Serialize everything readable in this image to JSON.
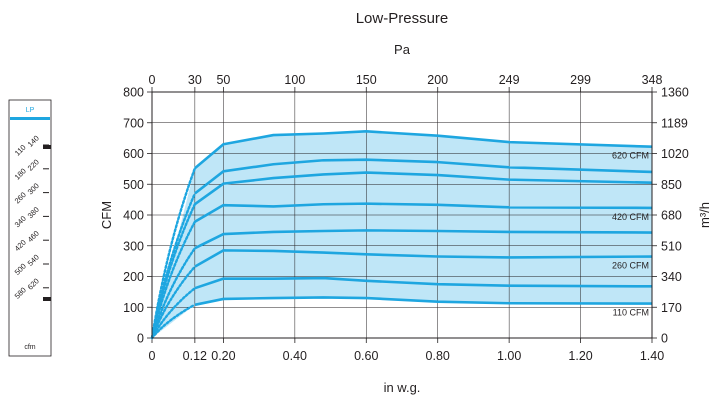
{
  "chart_data": {
    "type": "area",
    "title": "Low-Pressure",
    "xlabel": "in w.g.",
    "ylabel": "CFM",
    "top_axis_label": "Pa",
    "right_axis_label": "m³/h",
    "xlim": [
      0,
      1.4
    ],
    "ylim": [
      0,
      800
    ],
    "x_ticks": [
      "0",
      "0.12",
      "0.20",
      "0.40",
      "0.60",
      "0.80",
      "1.00",
      "1.20",
      "1.40"
    ],
    "x_tick_values": [
      0,
      0.12,
      0.2,
      0.4,
      0.6,
      0.8,
      1.0,
      1.2,
      1.4
    ],
    "y_ticks": [
      "0",
      "100",
      "200",
      "300",
      "400",
      "500",
      "600",
      "700",
      "800"
    ],
    "y_tick_values": [
      0,
      100,
      200,
      300,
      400,
      500,
      600,
      700,
      800
    ],
    "top_ticks": [
      "0",
      "30",
      "50",
      "100",
      "150",
      "200",
      "249",
      "299",
      "348"
    ],
    "right_ticks": [
      "0",
      "170",
      "340",
      "510",
      "680",
      "850",
      "1020",
      "1189",
      "1360"
    ],
    "grid": true,
    "colors": {
      "line": "#1ea6e0",
      "fill": "#bfe6f7",
      "grid": "#231f20"
    },
    "series": [
      {
        "name": "110 CFM",
        "x": [
          0.12,
          0.2,
          0.34,
          0.48,
          0.6,
          0.8,
          1.0,
          1.4
        ],
        "y": [
          108,
          127,
          130,
          132,
          130,
          118,
          113,
          112
        ]
      },
      {
        "x": [
          0.12,
          0.2,
          0.34,
          0.48,
          0.6,
          0.8,
          1.0,
          1.4
        ],
        "y": [
          162,
          193,
          193,
          195,
          186,
          175,
          170,
          168
        ]
      },
      {
        "name": "260 CFM",
        "x": [
          0.12,
          0.2,
          0.34,
          0.48,
          0.6,
          0.8,
          1.0,
          1.4
        ],
        "y": [
          232,
          285,
          283,
          278,
          272,
          265,
          262,
          265
        ]
      },
      {
        "x": [
          0.12,
          0.2,
          0.34,
          0.48,
          0.6,
          0.8,
          1.0,
          1.4
        ],
        "y": [
          292,
          338,
          345,
          348,
          350,
          348,
          345,
          343
        ]
      },
      {
        "name": "420 CFM",
        "x": [
          0.12,
          0.2,
          0.34,
          0.48,
          0.6,
          0.8,
          1.0,
          1.4
        ],
        "y": [
          378,
          432,
          428,
          435,
          437,
          433,
          425,
          423
        ]
      },
      {
        "x": [
          0.12,
          0.2,
          0.34,
          0.48,
          0.6,
          0.8,
          1.0,
          1.4
        ],
        "y": [
          435,
          502,
          520,
          532,
          538,
          530,
          515,
          505
        ]
      },
      {
        "x": [
          0.12,
          0.2,
          0.34,
          0.48,
          0.6,
          0.8,
          1.0,
          1.4
        ],
        "y": [
          470,
          542,
          565,
          578,
          580,
          572,
          555,
          540
        ]
      },
      {
        "name": "620 CFM",
        "x": [
          0.12,
          0.2,
          0.34,
          0.48,
          0.6,
          0.8,
          1.0,
          1.4
        ],
        "y": [
          552,
          630,
          660,
          665,
          672,
          658,
          637,
          622
        ]
      }
    ],
    "curve_labels": [
      "620 CFM",
      "420 CFM",
      "260 CFM",
      "110 CFM"
    ]
  },
  "gauge": {
    "header": "LP",
    "footer": "cfm",
    "left_values": [
      "110",
      "180",
      "260",
      "340",
      "420",
      "500",
      "580"
    ],
    "right_values": [
      "140",
      "220",
      "300",
      "380",
      "460",
      "540",
      "620"
    ]
  }
}
